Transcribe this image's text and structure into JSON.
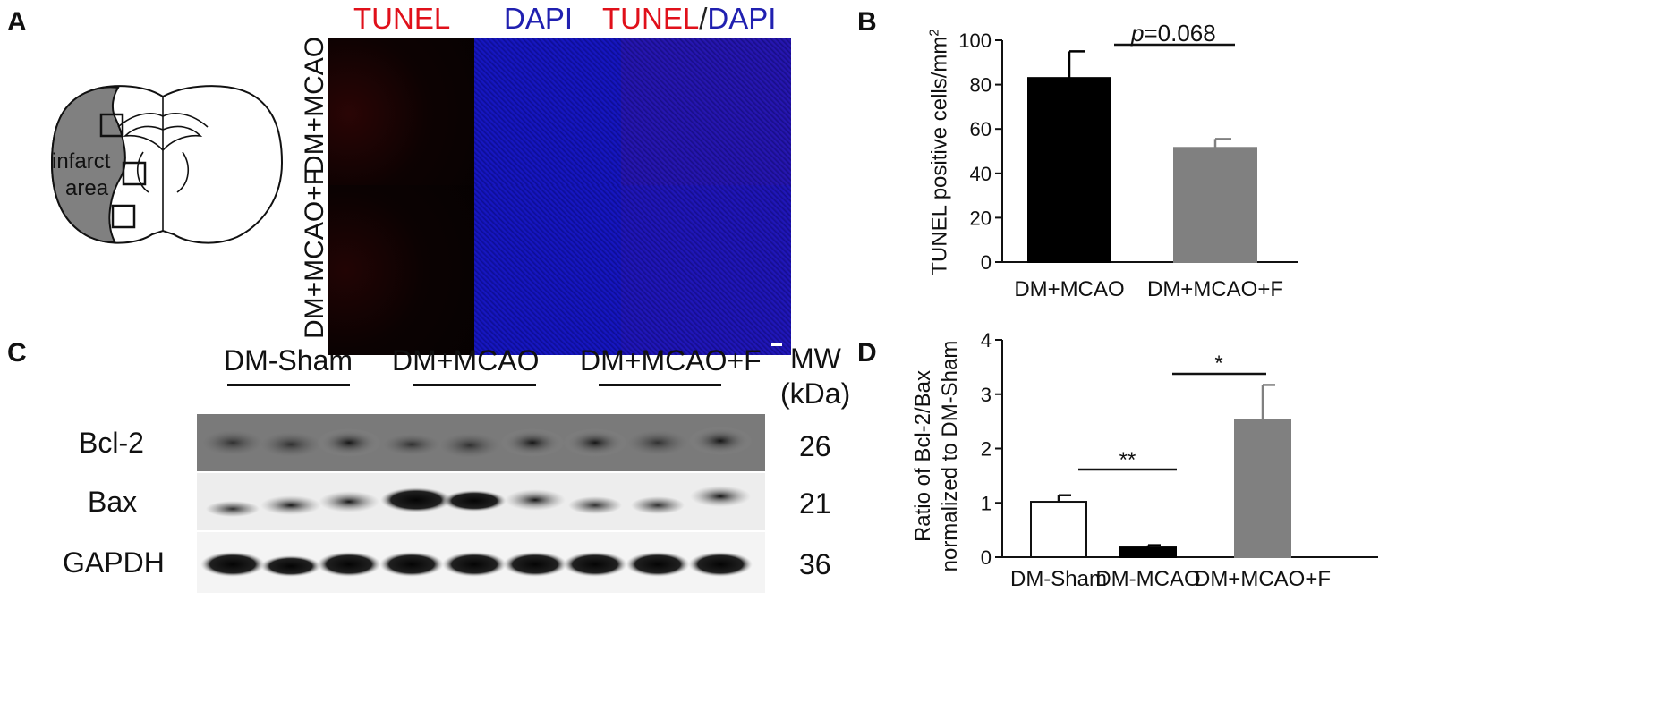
{
  "panelA": {
    "label": "A",
    "col_headers": [
      {
        "parts": [
          {
            "text": "TUNEL",
            "color": "#e0101a"
          }
        ]
      },
      {
        "parts": [
          {
            "text": "DAPI",
            "color": "#2020b0"
          }
        ]
      },
      {
        "parts": [
          {
            "text": "TUNEL",
            "color": "#e0101a"
          },
          {
            "text": "/",
            "color": "#222222"
          },
          {
            "text": "DAPI",
            "color": "#2020b0"
          }
        ]
      }
    ],
    "row_labels": [
      "DM+MCAO",
      "DM+MCAO+F"
    ],
    "brain_label_1": "infarct",
    "brain_label_2": "area"
  },
  "panelB": {
    "label": "B",
    "p_italic": "p",
    "p_value": "=0.068",
    "ylabel": "TUNEL positive cells/mm",
    "ylabel_sup": "2"
  },
  "panelC": {
    "label": "C",
    "group_labels": [
      "DM-Sham",
      "DM+MCAO",
      "DM+MCAO+F"
    ],
    "mw_header_1": "MW",
    "mw_header_2": "(kDa)",
    "proteins": [
      {
        "name": "Bcl-2",
        "mw": "26"
      },
      {
        "name": "Bax",
        "mw": "21"
      },
      {
        "name": "GAPDH",
        "mw": "36"
      }
    ]
  },
  "panelD": {
    "label": "D",
    "ylabel_1": "Ratio of  Bcl-2/Bax",
    "ylabel_2": "normalized  to DM-Sham",
    "sig_1": "**",
    "sig_2": "*"
  },
  "chart_data": [
    {
      "type": "bar",
      "panel": "B",
      "categories": [
        "DM+MCAO",
        "DM+MCAO+F"
      ],
      "values": [
        83,
        51.5
      ],
      "errors": [
        12,
        4
      ],
      "colors": [
        "#000000",
        "#808080"
      ],
      "ylabel": "TUNEL positive cells/mm2",
      "ylim": [
        0,
        100
      ],
      "yticks": [
        0,
        20,
        40,
        60,
        80,
        100
      ],
      "annotation": "p=0.068"
    },
    {
      "type": "bar",
      "panel": "D",
      "categories": [
        "DM-Sham",
        "DM-MCAO",
        "DM+MCAO+F"
      ],
      "values": [
        1.02,
        0.18,
        2.52
      ],
      "errors": [
        0.12,
        0.04,
        0.65
      ],
      "colors": [
        "#ffffff",
        "#000000",
        "#808080"
      ],
      "ylabel": "Ratio of Bcl-2/Bax normalized to DM-Sham",
      "ylim": [
        0,
        4
      ],
      "yticks": [
        0,
        1,
        2,
        3,
        4
      ],
      "annotations": [
        "**",
        "*"
      ]
    }
  ]
}
